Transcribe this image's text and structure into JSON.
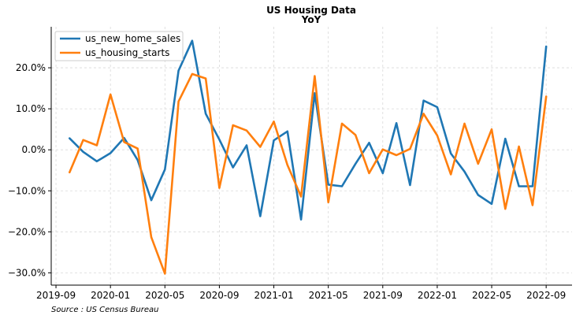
{
  "chart_data": {
    "type": "line",
    "title": "US Housing Data",
    "subtitle": "YoY",
    "source": "Source : US Census Bureau",
    "xlabel": "",
    "ylabel": "",
    "x": [
      "2019-10",
      "2019-11",
      "2019-12",
      "2020-01",
      "2020-02",
      "2020-03",
      "2020-04",
      "2020-05",
      "2020-06",
      "2020-07",
      "2020-08",
      "2020-09",
      "2020-10",
      "2020-11",
      "2020-12",
      "2021-01",
      "2021-02",
      "2021-03",
      "2021-04",
      "2021-05",
      "2021-06",
      "2021-07",
      "2021-08",
      "2021-09",
      "2021-10",
      "2021-11",
      "2021-12",
      "2022-01",
      "2022-02",
      "2022-03",
      "2022-04",
      "2022-05",
      "2022-06",
      "2022-07",
      "2022-08",
      "2022-09"
    ],
    "x_ticks": [
      "2019-09",
      "2020-01",
      "2020-05",
      "2020-09",
      "2021-01",
      "2021-05",
      "2021-09",
      "2022-01",
      "2022-05",
      "2022-09"
    ],
    "y_ticks": [
      -30,
      -20,
      -10,
      0,
      10,
      20
    ],
    "y_tick_labels": [
      "−30.0%",
      "−20.0%",
      "−10.0%",
      "0.0%",
      "10.0%",
      "20.0%"
    ],
    "ylim": [
      -33,
      30
    ],
    "grid": true,
    "legend_position": "top-left",
    "series": [
      {
        "name": "us_new_home_sales",
        "color": "#1f77b4",
        "values": [
          2.8,
          -0.5,
          -2.8,
          -0.8,
          2.9,
          -2.5,
          -12.3,
          -4.8,
          19.3,
          26.6,
          8.8,
          2.5,
          -4.3,
          1.1,
          -16.2,
          2.3,
          4.5,
          -17.0,
          13.8,
          -8.5,
          -8.9,
          -3.4,
          1.7,
          -5.7,
          6.5,
          -8.6,
          12.0,
          10.4,
          -0.9,
          -5.3,
          -11.0,
          -13.2,
          2.7,
          -8.9,
          -8.9,
          25.2
        ]
      },
      {
        "name": "us_housing_starts",
        "color": "#ff7f0e",
        "values": [
          -5.5,
          2.4,
          1.1,
          13.5,
          1.9,
          0.3,
          -21.3,
          -30.2,
          11.8,
          18.5,
          17.4,
          -9.3,
          6.0,
          4.7,
          0.7,
          6.9,
          -3.7,
          -11.4,
          18.0,
          -12.8,
          6.4,
          3.6,
          -5.7,
          0.1,
          -1.3,
          0.2,
          8.8,
          3.5,
          -6.0,
          6.4,
          -3.4,
          5.0,
          -14.4,
          0.8,
          -13.5,
          13.0
        ]
      }
    ]
  }
}
